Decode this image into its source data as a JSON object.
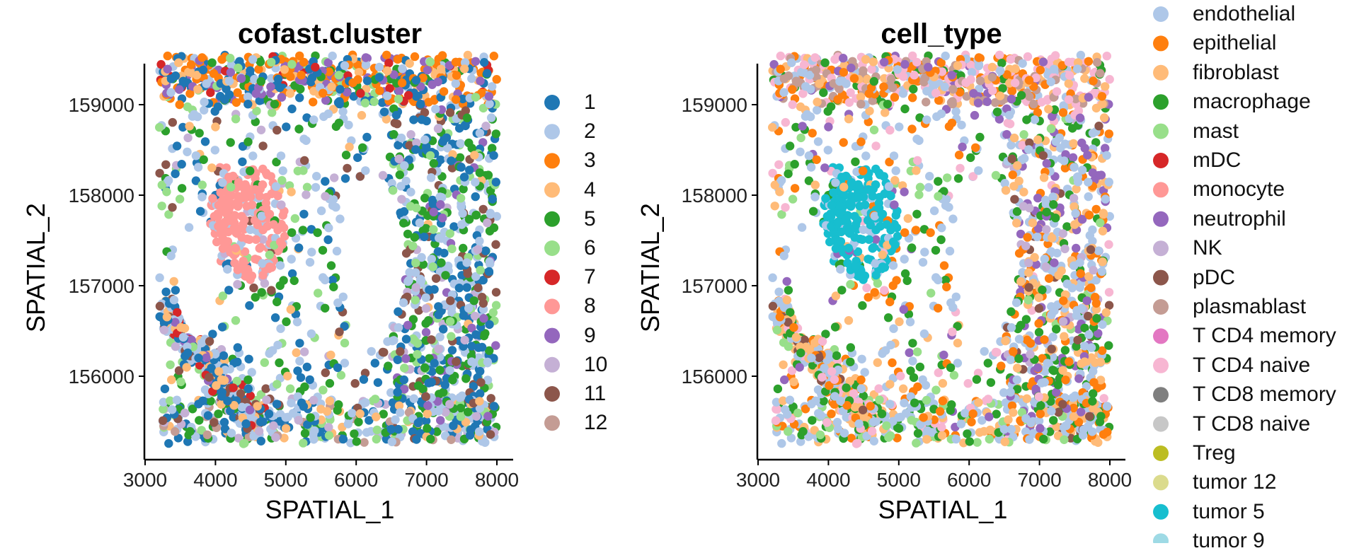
{
  "chart_data": [
    {
      "type": "scatter",
      "title": "cofast.cluster",
      "xlabel": "SPATIAL_1",
      "ylabel": "SPATIAL_2",
      "xlim": [
        3000,
        8000
      ],
      "ylim": [
        155200,
        159600
      ],
      "x_ticks": [
        "3000",
        "4000",
        "5000",
        "6000",
        "7000",
        "8000"
      ],
      "y_ticks": [
        "156000",
        "157000",
        "158000",
        "159000"
      ],
      "legend_position": "right",
      "legend": [
        {
          "label": "1",
          "color": "#1f77b4"
        },
        {
          "label": "2",
          "color": "#aec7e8"
        },
        {
          "label": "3",
          "color": "#ff7f0e"
        },
        {
          "label": "4",
          "color": "#ffbb78"
        },
        {
          "label": "5",
          "color": "#2ca02c"
        },
        {
          "label": "6",
          "color": "#98df8a"
        },
        {
          "label": "7",
          "color": "#d62728"
        },
        {
          "label": "8",
          "color": "#ff9896"
        },
        {
          "label": "9",
          "color": "#9467bd"
        },
        {
          "label": "10",
          "color": "#c5b0d5"
        },
        {
          "label": "11",
          "color": "#8c564b"
        },
        {
          "label": "12",
          "color": "#c49c94"
        }
      ],
      "region_composition": [
        {
          "region": "top band y>159000",
          "dominant": [
            "3",
            "1",
            "9",
            "4",
            "2"
          ]
        },
        {
          "region": "left-center cluster x 3800-5000, y 157200-158600",
          "dominant": [
            "8"
          ]
        },
        {
          "region": "lower-left diagonal band",
          "dominant": [
            "1",
            "2",
            "4",
            "11"
          ]
        },
        {
          "region": "right side x 6500-8000",
          "dominant": [
            "1",
            "2",
            "5",
            "9",
            "11"
          ]
        }
      ]
    },
    {
      "type": "scatter",
      "title": "cell_type",
      "xlabel": "SPATIAL_1",
      "ylabel": "SPATIAL_2",
      "xlim": [
        3000,
        8000
      ],
      "ylim": [
        155200,
        159600
      ],
      "x_ticks": [
        "3000",
        "4000",
        "5000",
        "6000",
        "7000",
        "8000"
      ],
      "y_ticks": [
        "156000",
        "157000",
        "158000",
        "159000"
      ],
      "legend_position": "right",
      "legend": [
        {
          "label": "endothelial",
          "color": "#aec7e8"
        },
        {
          "label": "epithelial",
          "color": "#ff7f0e"
        },
        {
          "label": "fibroblast",
          "color": "#ffbb78"
        },
        {
          "label": "macrophage",
          "color": "#2ca02c"
        },
        {
          "label": "mast",
          "color": "#98df8a"
        },
        {
          "label": "mDC",
          "color": "#d62728"
        },
        {
          "label": "monocyte",
          "color": "#ff9896"
        },
        {
          "label": "neutrophil",
          "color": "#9467bd"
        },
        {
          "label": "NK",
          "color": "#c5b0d5"
        },
        {
          "label": "pDC",
          "color": "#8c564b"
        },
        {
          "label": "plasmablast",
          "color": "#c49c94"
        },
        {
          "label": "T CD4 memory",
          "color": "#e377c2"
        },
        {
          "label": "T CD4 naive",
          "color": "#f7b6d2"
        },
        {
          "label": "T CD8 memory",
          "color": "#7f7f7f"
        },
        {
          "label": "T CD8 naive",
          "color": "#c7c7c7"
        },
        {
          "label": "Treg",
          "color": "#bcbd22"
        },
        {
          "label": "tumor 12",
          "color": "#dbdb8d"
        },
        {
          "label": "tumor 5",
          "color": "#17becf"
        },
        {
          "label": "tumor 9",
          "color": "#9edae5"
        }
      ],
      "region_composition": [
        {
          "region": "top band y>159000",
          "dominant": [
            "T CD4 naive",
            "plasmablast",
            "epithelial",
            "endothelial"
          ]
        },
        {
          "region": "left-center cluster x 3800-5000, y 157200-158600",
          "dominant": [
            "tumor 5"
          ]
        },
        {
          "region": "lower-left diagonal band",
          "dominant": [
            "endothelial",
            "fibroblast",
            "epithelial"
          ]
        },
        {
          "region": "right side x 6500-8000",
          "dominant": [
            "endothelial",
            "fibroblast",
            "neutrophil",
            "macrophage"
          ]
        }
      ]
    }
  ]
}
